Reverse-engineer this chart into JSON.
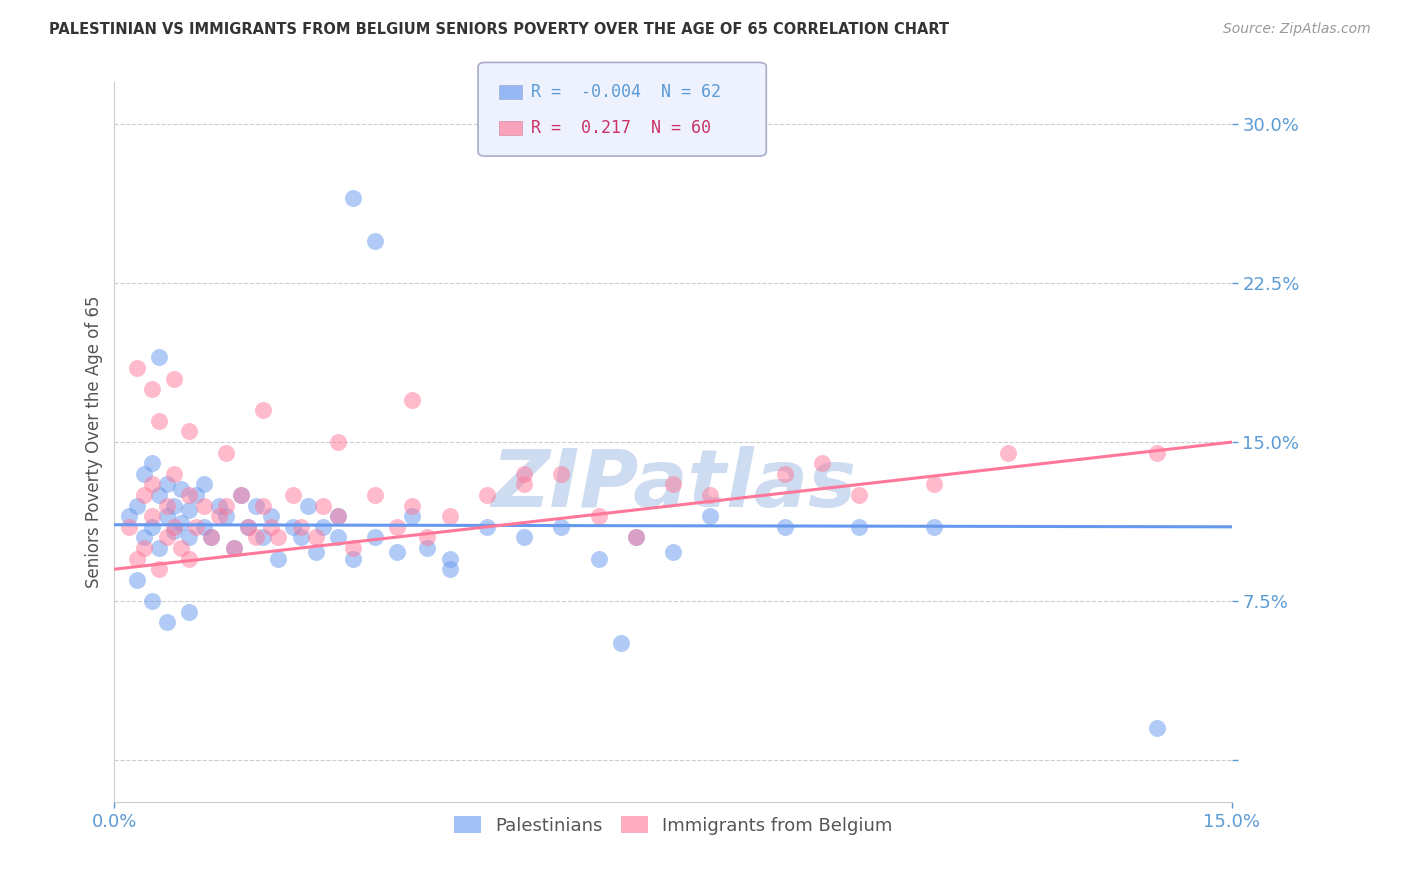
{
  "title": "PALESTINIAN VS IMMIGRANTS FROM BELGIUM SENIORS POVERTY OVER THE AGE OF 65 CORRELATION CHART",
  "source": "Source: ZipAtlas.com",
  "ylabel": "Seniors Poverty Over the Age of 65",
  "xlim": [
    0.0,
    15.0
  ],
  "ylim": [
    -2.0,
    32.0
  ],
  "yticks": [
    0.0,
    7.5,
    15.0,
    22.5,
    30.0
  ],
  "xticks": [
    0.0,
    15.0
  ],
  "ytick_labels": [
    "",
    "7.5%",
    "15.0%",
    "22.5%",
    "30.0%"
  ],
  "xtick_labels": [
    "0.0%",
    "15.0%"
  ],
  "grid_color": "#cccccc",
  "background_color": "#ffffff",
  "series": [
    {
      "name": "Palestinians",
      "color": "#6699ee",
      "R": -0.004,
      "N": 62,
      "x": [
        0.2,
        0.3,
        0.4,
        0.4,
        0.5,
        0.5,
        0.6,
        0.6,
        0.7,
        0.7,
        0.8,
        0.8,
        0.9,
        0.9,
        1.0,
        1.0,
        1.1,
        1.2,
        1.2,
        1.3,
        1.4,
        1.5,
        1.6,
        1.7,
        1.8,
        1.9,
        2.0,
        2.1,
        2.2,
        2.4,
        2.5,
        2.6,
        2.7,
        2.8,
        3.0,
        3.0,
        3.2,
        3.5,
        3.8,
        4.0,
        4.2,
        4.5,
        5.0,
        5.5,
        6.0,
        6.5,
        7.0,
        7.5,
        8.0,
        9.0,
        10.0,
        11.0,
        3.2,
        3.5,
        0.3,
        0.5,
        0.7,
        1.0,
        4.5,
        6.8,
        14.0,
        0.6
      ],
      "y": [
        11.5,
        12.0,
        10.5,
        13.5,
        11.0,
        14.0,
        10.0,
        12.5,
        11.5,
        13.0,
        10.8,
        12.0,
        11.2,
        12.8,
        10.5,
        11.8,
        12.5,
        11.0,
        13.0,
        10.5,
        12.0,
        11.5,
        10.0,
        12.5,
        11.0,
        12.0,
        10.5,
        11.5,
        9.5,
        11.0,
        10.5,
        12.0,
        9.8,
        11.0,
        10.5,
        11.5,
        9.5,
        10.5,
        9.8,
        11.5,
        10.0,
        9.5,
        11.0,
        10.5,
        11.0,
        9.5,
        10.5,
        9.8,
        11.5,
        11.0,
        11.0,
        11.0,
        26.5,
        24.5,
        8.5,
        7.5,
        6.5,
        7.0,
        9.0,
        5.5,
        1.5,
        19.0
      ]
    },
    {
      "name": "Immigrants from Belgium",
      "color": "#ff7799",
      "R": 0.217,
      "N": 60,
      "x": [
        0.2,
        0.3,
        0.4,
        0.4,
        0.5,
        0.5,
        0.6,
        0.7,
        0.7,
        0.8,
        0.8,
        0.9,
        1.0,
        1.0,
        1.1,
        1.2,
        1.3,
        1.4,
        1.5,
        1.6,
        1.7,
        1.8,
        1.9,
        2.0,
        2.1,
        2.2,
        2.4,
        2.5,
        2.7,
        2.8,
        3.0,
        3.2,
        3.5,
        3.8,
        4.0,
        4.2,
        4.5,
        5.0,
        5.5,
        6.0,
        6.5,
        7.0,
        8.0,
        9.0,
        10.0,
        11.0,
        12.0,
        0.3,
        0.5,
        0.6,
        0.8,
        1.0,
        1.5,
        2.0,
        3.0,
        4.0,
        5.5,
        7.5,
        9.5,
        14.0
      ],
      "y": [
        11.0,
        9.5,
        12.5,
        10.0,
        11.5,
        13.0,
        9.0,
        12.0,
        10.5,
        11.0,
        13.5,
        10.0,
        12.5,
        9.5,
        11.0,
        12.0,
        10.5,
        11.5,
        12.0,
        10.0,
        12.5,
        11.0,
        10.5,
        12.0,
        11.0,
        10.5,
        12.5,
        11.0,
        10.5,
        12.0,
        11.5,
        10.0,
        12.5,
        11.0,
        12.0,
        10.5,
        11.5,
        12.5,
        13.0,
        13.5,
        11.5,
        10.5,
        12.5,
        13.5,
        12.5,
        13.0,
        14.5,
        18.5,
        17.5,
        16.0,
        18.0,
        15.5,
        14.5,
        16.5,
        15.0,
        17.0,
        13.5,
        13.0,
        14.0,
        14.5
      ]
    }
  ],
  "blue_line_y0": 11.1,
  "blue_line_y1": 11.0,
  "pink_line_y0": 9.0,
  "pink_line_y1": 15.0,
  "watermark_text": "ZIPatlas",
  "watermark_color": "#cddcf0",
  "title_color": "#333333",
  "tick_color": "#5b9bd5",
  "legend_bg": "#eef2ff",
  "legend_edge": "#aaaacc"
}
